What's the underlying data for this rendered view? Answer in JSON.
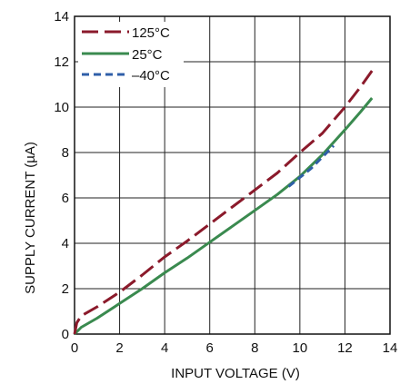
{
  "chart_data": {
    "type": "line",
    "xlabel": "INPUT VOLTAGE (V)",
    "ylabel": "SUPPLY CURRENT (µA)",
    "xlim": [
      0,
      14
    ],
    "ylim": [
      0,
      14
    ],
    "xticks": [
      "0",
      "2",
      "4",
      "6",
      "8",
      "10",
      "12",
      "14"
    ],
    "yticks": [
      "0",
      "2",
      "4",
      "6",
      "8",
      "10",
      "12",
      "14"
    ],
    "grid": true,
    "legend_position": "top-left",
    "series": [
      {
        "name": "125°C",
        "color": "#8b1a2b",
        "dash": "long-dash",
        "points": [
          [
            0,
            0
          ],
          [
            0.1,
            0.5
          ],
          [
            0.3,
            0.8
          ],
          [
            1,
            1.2
          ],
          [
            2,
            1.85
          ],
          [
            3,
            2.6
          ],
          [
            4,
            3.4
          ],
          [
            5,
            4.1
          ],
          [
            6,
            4.85
          ],
          [
            7,
            5.6
          ],
          [
            8,
            6.35
          ],
          [
            9,
            7.1
          ],
          [
            10,
            8.0
          ],
          [
            11,
            8.85
          ],
          [
            12,
            10.0
          ],
          [
            12.7,
            10.9
          ],
          [
            13.2,
            11.6
          ]
        ]
      },
      {
        "name": "25°C",
        "color": "#3a8a4f",
        "dash": "solid",
        "points": [
          [
            0,
            0
          ],
          [
            0.1,
            0.1
          ],
          [
            0.3,
            0.3
          ],
          [
            1,
            0.7
          ],
          [
            2,
            1.35
          ],
          [
            3,
            2.0
          ],
          [
            4,
            2.7
          ],
          [
            5,
            3.35
          ],
          [
            6,
            4.05
          ],
          [
            7,
            4.75
          ],
          [
            8,
            5.45
          ],
          [
            9,
            6.15
          ],
          [
            10,
            6.95
          ],
          [
            11,
            7.9
          ],
          [
            12,
            9.0
          ],
          [
            12.7,
            9.8
          ],
          [
            13.2,
            10.4
          ]
        ]
      },
      {
        "name": "–40°C",
        "color": "#2f5fa8",
        "dash": "short-dash",
        "points": [
          [
            9.5,
            6.5
          ],
          [
            10,
            6.9
          ],
          [
            10.5,
            7.3
          ],
          [
            11,
            7.8
          ],
          [
            11.5,
            8.3
          ]
        ]
      }
    ]
  }
}
